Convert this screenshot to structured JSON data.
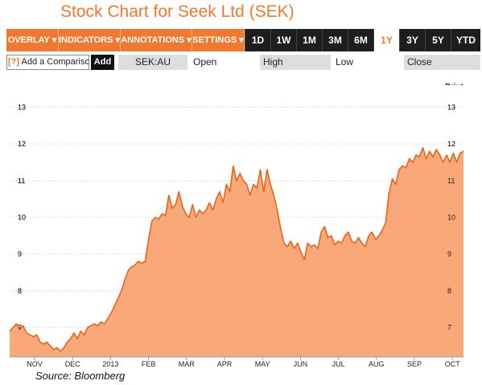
{
  "title": "Stock Chart for Seek Ltd (SEK)",
  "toolbar": {
    "menus": [
      "OVERLAY ▾",
      "INDICATORS ▾",
      "ANNOTATIONS ▾",
      "SETTINGS ▾"
    ],
    "ranges": [
      "1D",
      "1W",
      "1M",
      "3M",
      "6M",
      "1Y",
      "3Y",
      "5Y",
      "YTD"
    ],
    "active_range": "1Y"
  },
  "quote_row": {
    "help_glyph": "[?]",
    "compare_placeholder": "Add a Comparison",
    "add_label": "Add",
    "ticker": "SEK:AU",
    "open_label": "Open",
    "high_label": "High",
    "low_label": "Low",
    "close_label": "Close"
  },
  "print_label": "Print",
  "source": "Source: Bloomberg",
  "colors": {
    "accent": "#f07830",
    "fill": "#f9a87a",
    "line": "#e86418"
  },
  "chart_data": {
    "type": "area",
    "title": "",
    "xlabel": "",
    "ylabel": "",
    "ylim": [
      6.2,
      13.6
    ],
    "y_ticks": [
      7,
      8,
      9,
      10,
      11,
      12,
      13
    ],
    "x_tick_labels": [
      "NOV",
      "DEC",
      "2013",
      "FEB",
      "MAR",
      "APR",
      "MAY",
      "JUN",
      "JUL",
      "AUG",
      "SEP",
      "OCT"
    ],
    "grid": true,
    "series": [
      {
        "values": [
          6.9,
          7.0,
          7.1,
          6.95,
          7.05,
          6.85,
          6.8,
          6.75,
          6.8,
          6.6,
          6.55,
          6.6,
          6.5,
          6.4,
          6.45,
          6.35,
          6.45,
          6.6,
          6.7,
          6.85,
          6.7,
          6.9,
          6.8,
          7.0,
          7.05,
          7.1,
          7.05,
          7.15,
          7.1,
          7.25,
          7.4,
          7.6,
          7.8,
          8.0,
          8.3,
          8.55,
          8.65,
          8.7,
          8.8,
          8.75,
          8.8,
          9.4,
          9.9,
          10.0,
          9.95,
          10.1,
          10.05,
          10.6,
          10.25,
          10.35,
          10.7,
          10.3,
          10.1,
          10.0,
          10.35,
          10.0,
          10.2,
          10.1,
          10.2,
          10.4,
          10.2,
          10.5,
          10.7,
          10.4,
          10.9,
          10.7,
          11.4,
          11.0,
          11.2,
          11.0,
          10.9,
          10.6,
          10.9,
          10.8,
          11.3,
          10.7,
          11.3,
          10.9,
          10.6,
          10.2,
          9.7,
          9.3,
          9.2,
          9.35,
          9.15,
          9.3,
          9.05,
          8.85,
          9.3,
          9.2,
          9.25,
          9.15,
          9.6,
          9.75,
          9.45,
          9.5,
          9.25,
          9.35,
          9.3,
          9.5,
          9.6,
          9.35,
          9.3,
          9.45,
          9.3,
          9.2,
          9.5,
          9.6,
          9.4,
          9.5,
          9.65,
          9.85,
          10.65,
          11.05,
          10.9,
          11.3,
          11.4,
          11.35,
          11.6,
          11.5,
          11.7,
          11.65,
          11.9,
          11.6,
          11.8,
          11.65,
          11.85,
          11.7,
          11.5,
          11.7,
          11.5,
          11.75,
          11.5,
          11.75,
          11.8
        ]
      }
    ]
  }
}
